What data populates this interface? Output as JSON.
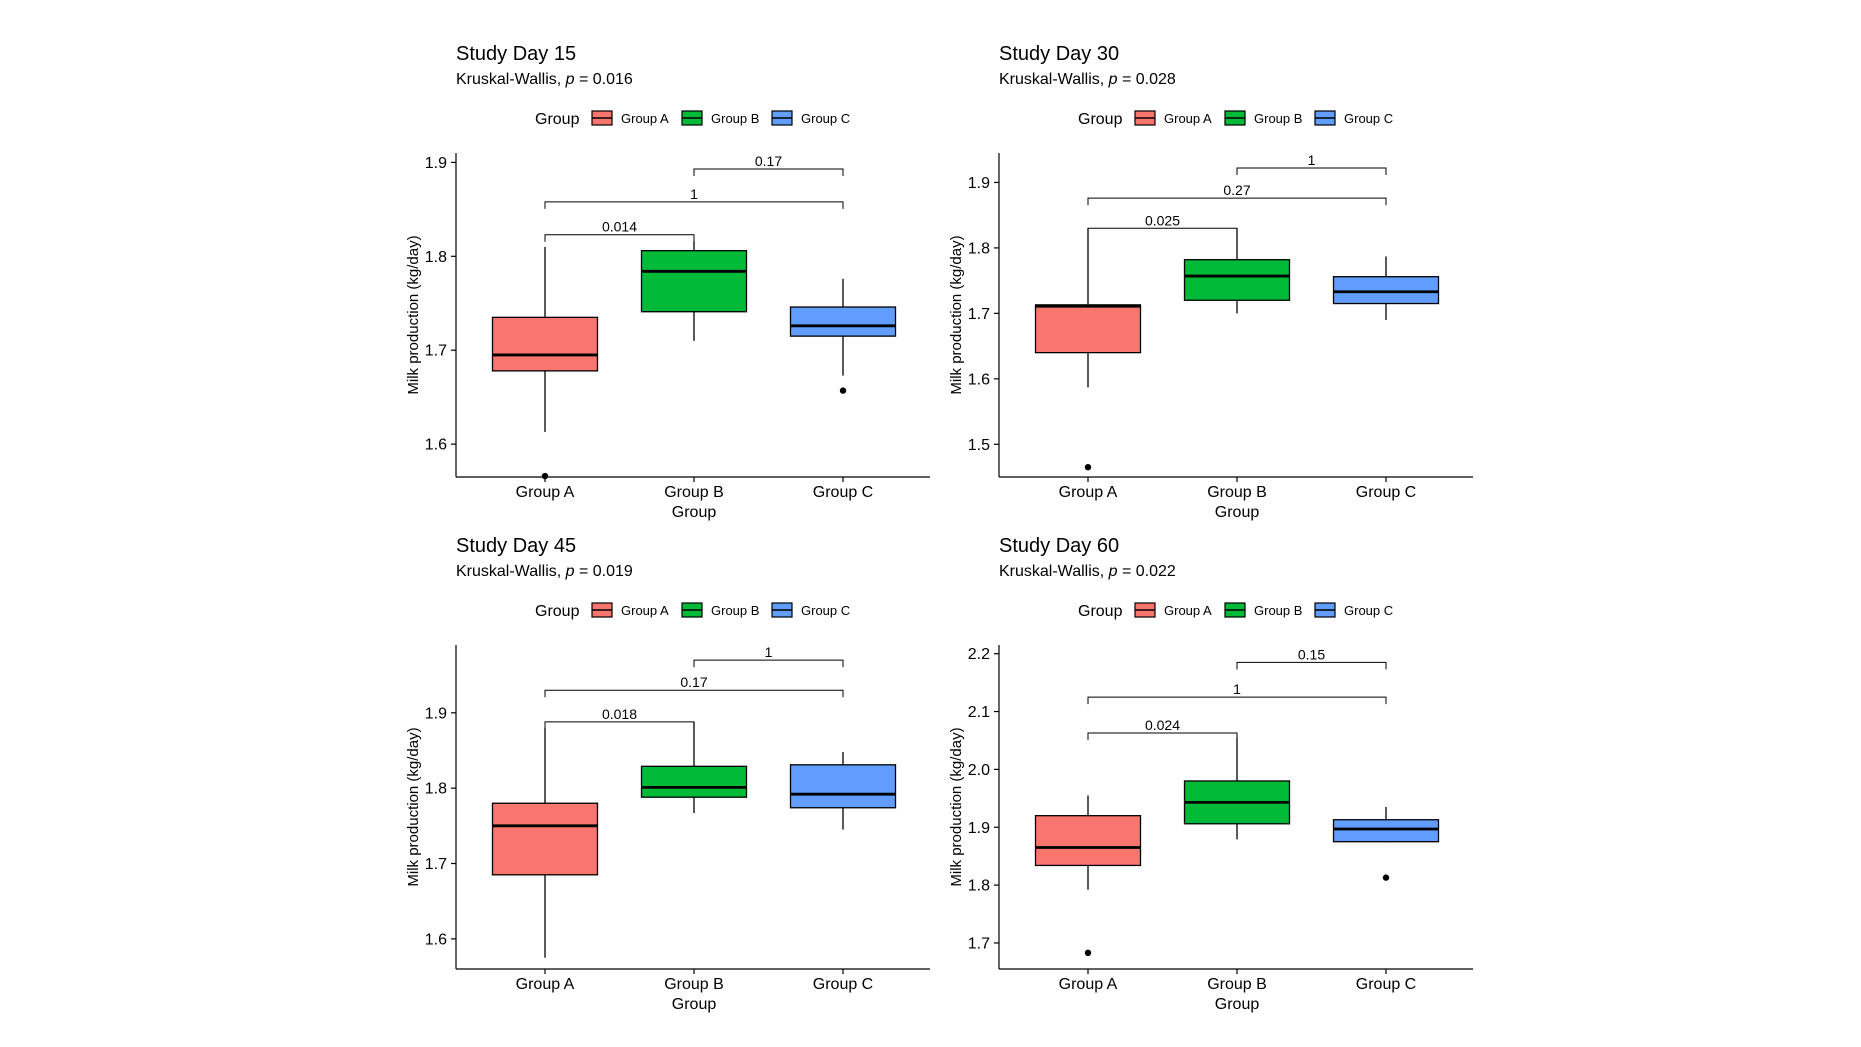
{
  "colors": {
    "group_a": "#F8766D",
    "group_b": "#00BA38",
    "group_c": "#619CFF",
    "axis": "#000000"
  },
  "chart_data": [
    {
      "type": "box",
      "title": "Study Day 15",
      "subtitle": {
        "prefix": "Kruskal-Wallis, ",
        "italic": "p",
        "suffix": " = 0.016"
      },
      "xlabel": "Group",
      "ylabel": "Milk production (kg/day)",
      "legend": {
        "title": "Group",
        "position": "top",
        "entries": [
          "Group A",
          "Group B",
          "Group C"
        ]
      },
      "categories": [
        "Group A",
        "Group B",
        "Group C"
      ],
      "ylim": [
        1.565,
        1.91
      ],
      "yticks": [
        1.6,
        1.7,
        1.8,
        1.9
      ],
      "grid": false,
      "boxes": [
        {
          "group": "Group A",
          "lower_whisker": 1.613,
          "q1": 1.678,
          "median": 1.695,
          "q3": 1.735,
          "upper_whisker": 1.81,
          "outliers": [
            1.566
          ]
        },
        {
          "group": "Group B",
          "lower_whisker": 1.71,
          "q1": 1.741,
          "median": 1.784,
          "q3": 1.806,
          "upper_whisker": 1.816,
          "outliers": []
        },
        {
          "group": "Group C",
          "lower_whisker": 1.673,
          "q1": 1.715,
          "median": 1.726,
          "q3": 1.746,
          "upper_whisker": 1.776,
          "outliers": [
            1.657
          ]
        }
      ],
      "comparisons": [
        {
          "from": 0,
          "to": 1,
          "label": "0.014",
          "y": 1.823
        },
        {
          "from": 0,
          "to": 2,
          "label": "1",
          "y": 1.858
        },
        {
          "from": 1,
          "to": 2,
          "label": "0.17",
          "y": 1.893
        }
      ]
    },
    {
      "type": "box",
      "title": "Study Day 30",
      "subtitle": {
        "prefix": "Kruskal-Wallis, ",
        "italic": "p",
        "suffix": " = 0.028"
      },
      "xlabel": "Group",
      "ylabel": "Milk production (kg/day)",
      "legend": {
        "title": "Group",
        "position": "top",
        "entries": [
          "Group A",
          "Group B",
          "Group C"
        ]
      },
      "categories": [
        "Group A",
        "Group B",
        "Group C"
      ],
      "ylim": [
        1.45,
        1.945
      ],
      "yticks": [
        1.5,
        1.6,
        1.7,
        1.8,
        1.9
      ],
      "grid": false,
      "boxes": [
        {
          "group": "Group A",
          "lower_whisker": 1.587,
          "q1": 1.64,
          "median": 1.711,
          "q3": 1.713,
          "upper_whisker": 1.83,
          "outliers": [
            1.465
          ]
        },
        {
          "group": "Group B",
          "lower_whisker": 1.7,
          "q1": 1.72,
          "median": 1.757,
          "q3": 1.782,
          "upper_whisker": 1.83,
          "outliers": []
        },
        {
          "group": "Group C",
          "lower_whisker": 1.69,
          "q1": 1.715,
          "median": 1.733,
          "q3": 1.756,
          "upper_whisker": 1.787,
          "outliers": []
        }
      ],
      "comparisons": [
        {
          "from": 0,
          "to": 1,
          "label": "0.025",
          "y": 1.83
        },
        {
          "from": 0,
          "to": 2,
          "label": "0.27",
          "y": 1.876
        },
        {
          "from": 1,
          "to": 2,
          "label": "1",
          "y": 1.922
        }
      ]
    },
    {
      "type": "box",
      "title": "Study Day 45",
      "subtitle": {
        "prefix": "Kruskal-Wallis, ",
        "italic": "p",
        "suffix": " = 0.019"
      },
      "xlabel": "Group",
      "ylabel": "Milk production (kg/day)",
      "legend": {
        "title": "Group",
        "position": "top",
        "entries": [
          "Group A",
          "Group B",
          "Group C"
        ]
      },
      "categories": [
        "Group A",
        "Group B",
        "Group C"
      ],
      "ylim": [
        1.56,
        1.99
      ],
      "yticks": [
        1.6,
        1.7,
        1.8,
        1.9
      ],
      "grid": false,
      "boxes": [
        {
          "group": "Group A",
          "lower_whisker": 1.575,
          "q1": 1.685,
          "median": 1.75,
          "q3": 1.78,
          "upper_whisker": 1.88,
          "outliers": []
        },
        {
          "group": "Group B",
          "lower_whisker": 1.767,
          "q1": 1.788,
          "median": 1.801,
          "q3": 1.829,
          "upper_whisker": 1.888,
          "outliers": []
        },
        {
          "group": "Group C",
          "lower_whisker": 1.745,
          "q1": 1.774,
          "median": 1.792,
          "q3": 1.831,
          "upper_whisker": 1.848,
          "outliers": []
        }
      ],
      "comparisons": [
        {
          "from": 0,
          "to": 1,
          "label": "0.018",
          "y": 1.888
        },
        {
          "from": 0,
          "to": 2,
          "label": "0.17",
          "y": 1.93
        },
        {
          "from": 1,
          "to": 2,
          "label": "1",
          "y": 1.97
        }
      ]
    },
    {
      "type": "box",
      "title": "Study Day 60",
      "subtitle": {
        "prefix": "Kruskal-Wallis, ",
        "italic": "p",
        "suffix": " = 0.022"
      },
      "xlabel": "Group",
      "ylabel": "Milk production (kg/day)",
      "legend": {
        "title": "Group",
        "position": "top",
        "entries": [
          "Group A",
          "Group B",
          "Group C"
        ]
      },
      "categories": [
        "Group A",
        "Group B",
        "Group C"
      ],
      "ylim": [
        1.655,
        2.215
      ],
      "yticks": [
        1.7,
        1.8,
        1.9,
        2.0,
        2.1,
        2.2
      ],
      "grid": false,
      "boxes": [
        {
          "group": "Group A",
          "lower_whisker": 1.792,
          "q1": 1.834,
          "median": 1.865,
          "q3": 1.92,
          "upper_whisker": 1.955,
          "outliers": [
            1.683
          ]
        },
        {
          "group": "Group B",
          "lower_whisker": 1.879,
          "q1": 1.906,
          "median": 1.943,
          "q3": 1.98,
          "upper_whisker": 2.055,
          "outliers": []
        },
        {
          "group": "Group C",
          "lower_whisker": 1.874,
          "q1": 1.875,
          "median": 1.897,
          "q3": 1.913,
          "upper_whisker": 1.935,
          "outliers": [
            1.813
          ]
        }
      ],
      "comparisons": [
        {
          "from": 0,
          "to": 1,
          "label": "0.024",
          "y": 2.063
        },
        {
          "from": 0,
          "to": 2,
          "label": "1",
          "y": 2.125
        },
        {
          "from": 1,
          "to": 2,
          "label": "0.15",
          "y": 2.185
        }
      ]
    }
  ]
}
